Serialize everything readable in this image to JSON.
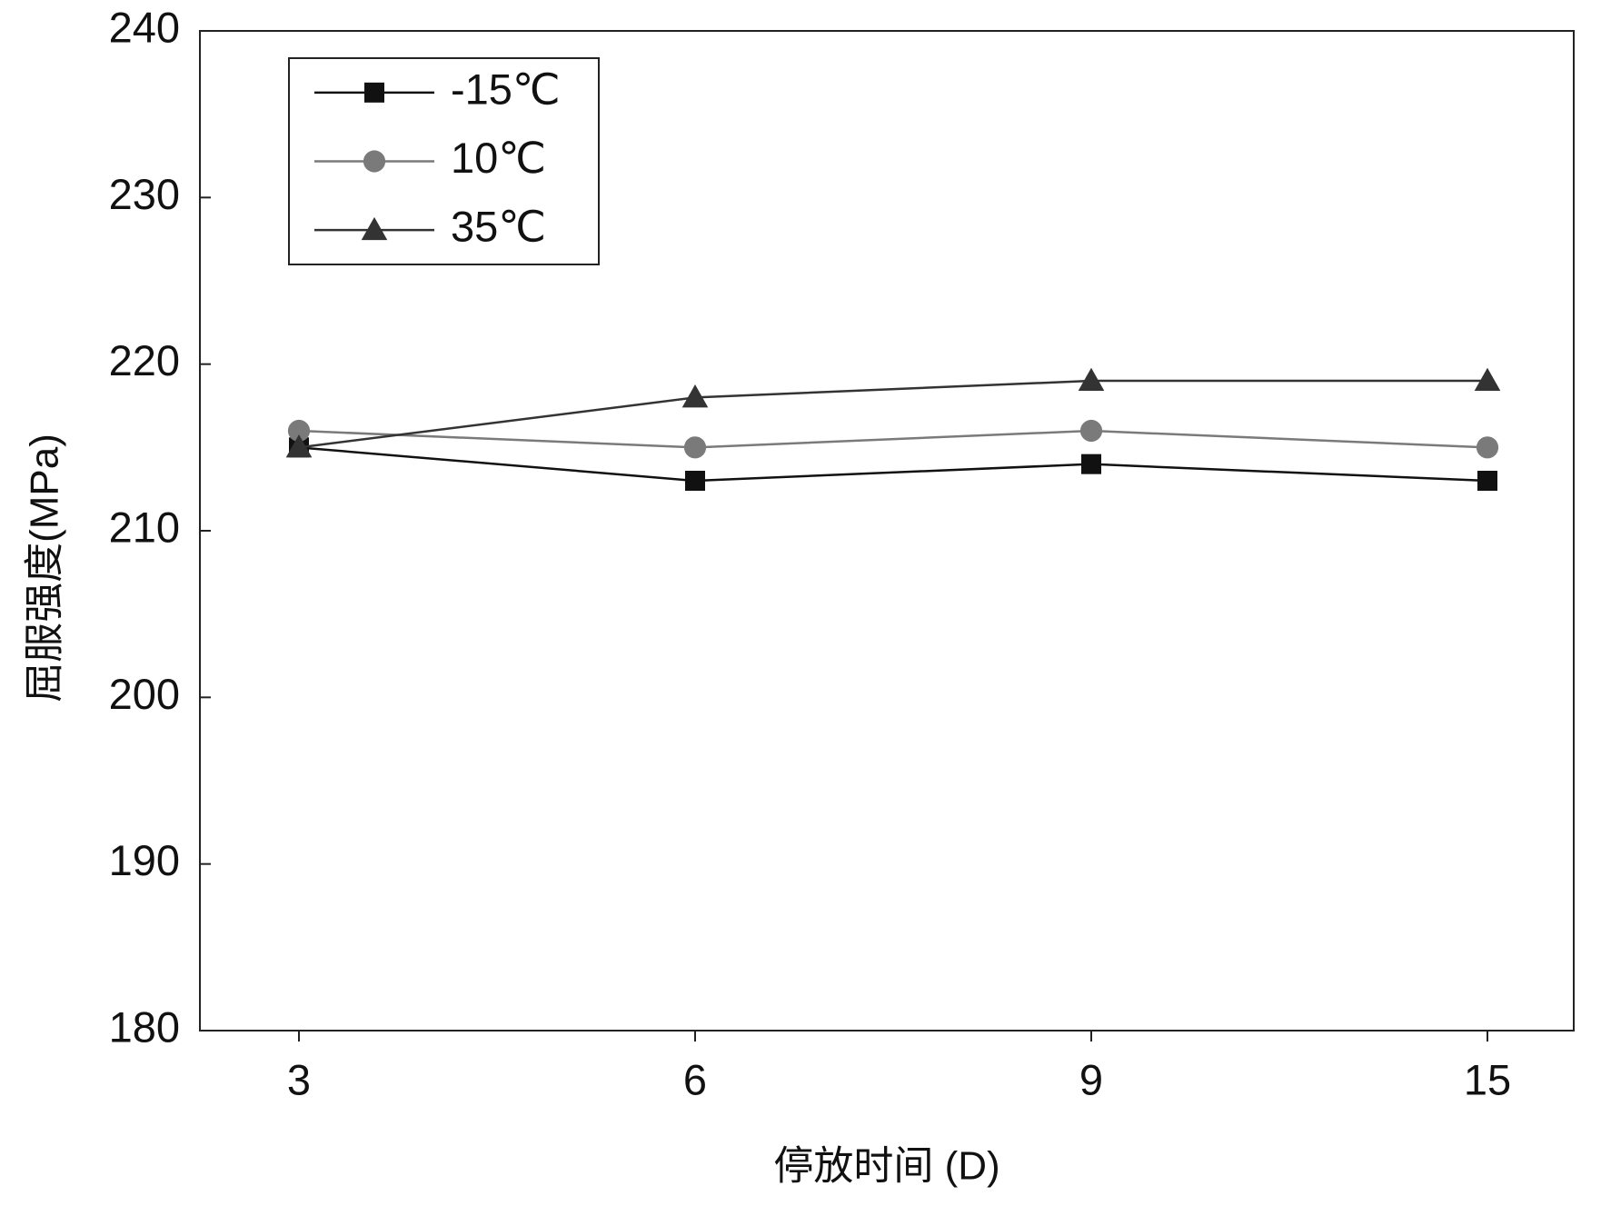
{
  "chart_data": {
    "type": "line",
    "x_label": "停放时间 (D)",
    "y_label": "屈服强度(MPa)",
    "categories": [
      "3",
      "6",
      "9",
      "15"
    ],
    "series": [
      {
        "name": "-15℃",
        "color": "#111111",
        "marker": "square",
        "values": [
          215,
          213,
          214,
          213
        ]
      },
      {
        "name": "10℃",
        "color": "#7a7a7a",
        "marker": "circle",
        "values": [
          216,
          215,
          216,
          215
        ]
      },
      {
        "name": "35℃",
        "color": "#333333",
        "marker": "triangle",
        "values": [
          215,
          218,
          219,
          219
        ]
      }
    ],
    "ylim": [
      180,
      240
    ],
    "yticks": [
      180,
      190,
      200,
      210,
      220,
      230,
      240
    ],
    "grid": false,
    "legend": "upper left"
  }
}
